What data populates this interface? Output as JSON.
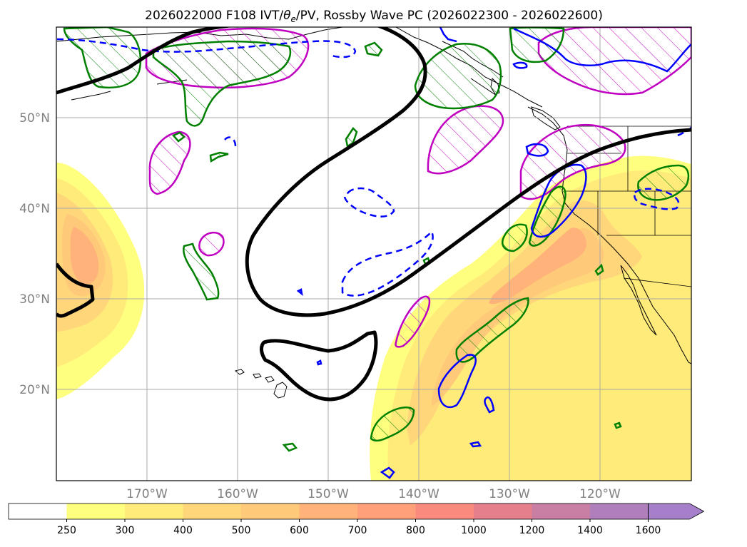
{
  "title_parts": {
    "prefix": "2026022000 F108 IVT/",
    "theta": "θ",
    "sub": "e",
    "suffix": "/PV, Rossby Wave PC (2026022300 - 2026022600)"
  },
  "map": {
    "lon_range": [
      -180,
      -110
    ],
    "lat_range": [
      10,
      59
    ],
    "graticule_step_deg": 10,
    "lat_ticks": [
      {
        "lat": 50,
        "label": "50°N"
      },
      {
        "lat": 40,
        "label": "40°N"
      },
      {
        "lat": 30,
        "label": "30°N"
      },
      {
        "lat": 20,
        "label": "20°N"
      }
    ],
    "lon_ticks": [
      {
        "lon": -170,
        "label": "170°W"
      },
      {
        "lon": -160,
        "label": "160°W"
      },
      {
        "lon": -150,
        "label": "150°W"
      },
      {
        "lon": -140,
        "label": "140°W"
      },
      {
        "lon": -130,
        "label": "130°W"
      },
      {
        "lon": -120,
        "label": "120°W"
      }
    ],
    "layers": {
      "ivt_shading": "IVT filled contours (yellow-orange)",
      "theta_e_contour": "black thick contour",
      "pv_hatched": "magenta and green hatched contours",
      "rossby_pc": "blue solid and dashed contours"
    }
  },
  "colorbar": {
    "bounds": [
      250,
      300,
      400,
      500,
      600,
      700,
      800,
      1000,
      1200,
      1400,
      1600
    ],
    "colors": [
      "#ffffff",
      "#ffff7f",
      "#ffeb7a",
      "#ffd77a",
      "#ffc97a",
      "#ffb27a",
      "#ffa07a",
      "#fa8a7e",
      "#e47f8b",
      "#c97fa3",
      "#b07fbb",
      "#a57fca"
    ],
    "extend": "max"
  }
}
